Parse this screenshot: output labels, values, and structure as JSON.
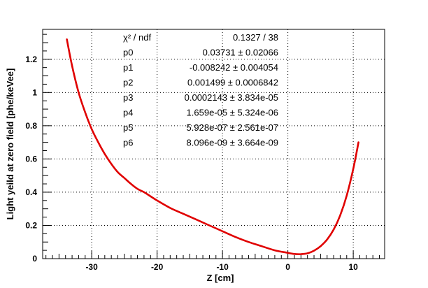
{
  "chart_data": {
    "type": "line",
    "title": "",
    "xlabel": "Z [cm]",
    "ylabel": "Light yeild at zero field [phe/keVee]",
    "xlim": [
      -37.5,
      14.8
    ],
    "ylim": [
      0,
      1.38
    ],
    "grid": true,
    "legend": "none",
    "x_ticks": [
      -30,
      -20,
      -10,
      0,
      10
    ],
    "x_tick_labels": [
      "-30",
      "-20",
      "-10",
      "0",
      "10"
    ],
    "y_ticks": [
      0,
      0.2,
      0.4,
      0.6,
      0.8,
      1,
      1.2
    ],
    "y_tick_labels": [
      "0",
      "0.2",
      "0.4",
      "0.6",
      "0.8",
      "1",
      "1.2"
    ],
    "series": [
      {
        "color": "#e00000",
        "x": [
          -33.8,
          -33,
          -32,
          -31,
          -30,
          -29,
          -28,
          -27,
          -26,
          -25,
          -24,
          -23,
          -22,
          -21,
          -20,
          -18,
          -16,
          -14,
          -12,
          -10,
          -8,
          -6,
          -4,
          -2,
          0,
          1,
          2,
          3,
          4,
          5,
          6,
          7,
          8,
          9,
          10,
          10.8
        ],
        "y": [
          1.32,
          1.16,
          1.0,
          0.88,
          0.78,
          0.7,
          0.63,
          0.57,
          0.52,
          0.485,
          0.45,
          0.42,
          0.4,
          0.375,
          0.35,
          0.305,
          0.27,
          0.235,
          0.2,
          0.165,
          0.13,
          0.1,
          0.075,
          0.05,
          0.035,
          0.028,
          0.027,
          0.032,
          0.048,
          0.075,
          0.115,
          0.175,
          0.26,
          0.38,
          0.54,
          0.7
        ]
      }
    ],
    "stats": {
      "rows": [
        {
          "label": "χ² / ndf",
          "value": "0.1327 / 38"
        },
        {
          "label": "p0",
          "value": "0.03731 ± 0.02066"
        },
        {
          "label": "p1",
          "value": "-0.008242 ± 0.004054"
        },
        {
          "label": "p2",
          "value": "0.001499 ± 0.0006842"
        },
        {
          "label": "p3",
          "value": "0.0002143 ± 3.834e-05"
        },
        {
          "label": "p4",
          "value": "1.659e-05 ± 5.324e-06"
        },
        {
          "label": "p5",
          "value": "5.928e-07 ± 2.561e-07"
        },
        {
          "label": "p6",
          "value": "8.096e-09 ± 3.664e-09"
        }
      ]
    }
  }
}
